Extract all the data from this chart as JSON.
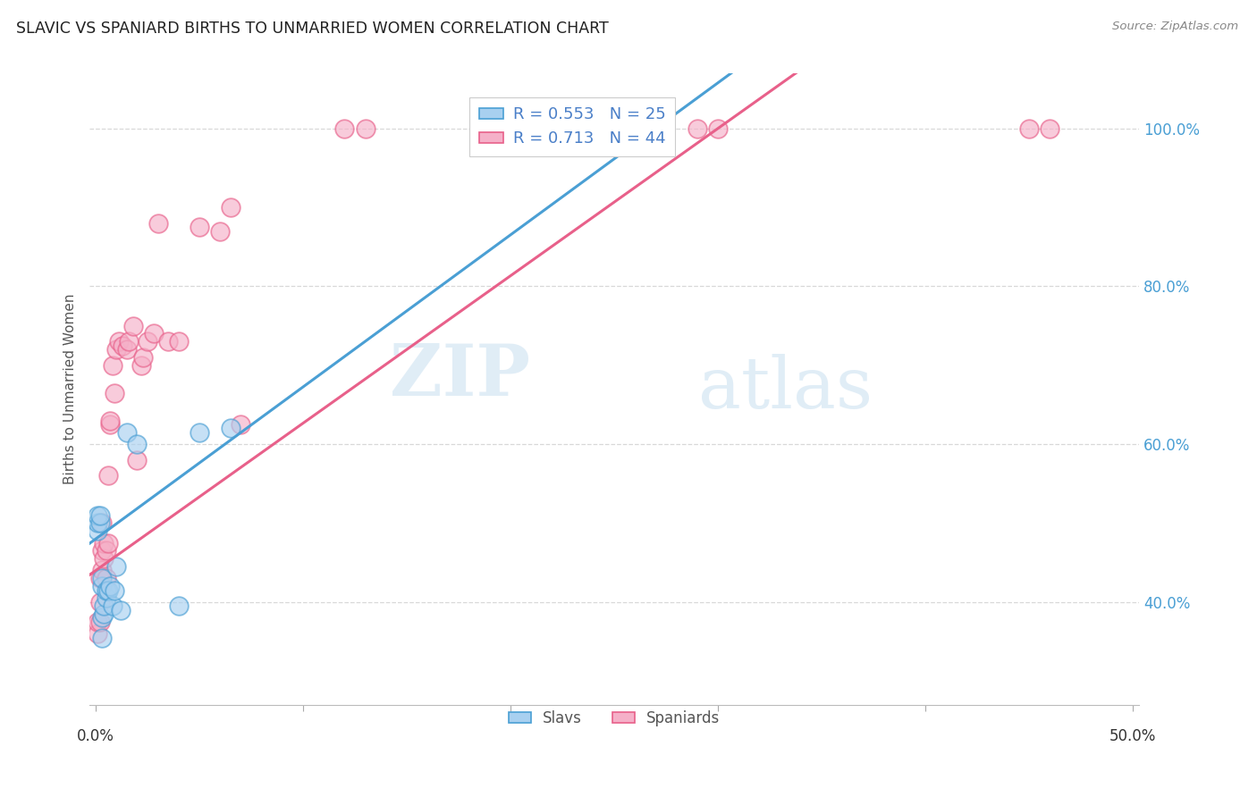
{
  "title": "SLAVIC VS SPANIARD BIRTHS TO UNMARRIED WOMEN CORRELATION CHART",
  "source": "Source: ZipAtlas.com",
  "ylabel": "Births to Unmarried Women",
  "xmin": -0.003,
  "xmax": 0.503,
  "ymin": 0.27,
  "ymax": 1.07,
  "slavs_R": 0.553,
  "slavs_N": 25,
  "spaniards_R": 0.713,
  "spaniards_N": 44,
  "slavs_color": "#a8d0f0",
  "spaniards_color": "#f5b0c8",
  "slavs_line_color": "#4a9fd4",
  "spaniards_line_color": "#e8608a",
  "legend_text_color": "#4a7fc8",
  "slavs_x": [
    0.001,
    0.001,
    0.001,
    0.002,
    0.002,
    0.003,
    0.003,
    0.003,
    0.003,
    0.004,
    0.004,
    0.005,
    0.005,
    0.006,
    0.007,
    0.008,
    0.009,
    0.01,
    0.012,
    0.015,
    0.02,
    0.04,
    0.05,
    0.065,
    0.27
  ],
  "slavs_y": [
    0.49,
    0.5,
    0.51,
    0.5,
    0.51,
    0.355,
    0.38,
    0.42,
    0.43,
    0.385,
    0.395,
    0.405,
    0.415,
    0.415,
    0.42,
    0.395,
    0.415,
    0.445,
    0.39,
    0.615,
    0.6,
    0.395,
    0.615,
    0.62,
    1.0
  ],
  "spaniards_x": [
    0.001,
    0.001,
    0.002,
    0.002,
    0.002,
    0.003,
    0.003,
    0.003,
    0.004,
    0.004,
    0.005,
    0.005,
    0.006,
    0.006,
    0.007,
    0.007,
    0.008,
    0.009,
    0.01,
    0.011,
    0.013,
    0.015,
    0.016,
    0.018,
    0.02,
    0.022,
    0.023,
    0.025,
    0.028,
    0.03,
    0.035,
    0.04,
    0.05,
    0.06,
    0.065,
    0.07,
    0.12,
    0.13,
    0.22,
    0.27,
    0.29,
    0.3,
    0.45,
    0.46
  ],
  "spaniards_y": [
    0.36,
    0.375,
    0.375,
    0.4,
    0.43,
    0.44,
    0.465,
    0.5,
    0.455,
    0.475,
    0.43,
    0.465,
    0.475,
    0.56,
    0.625,
    0.63,
    0.7,
    0.665,
    0.72,
    0.73,
    0.725,
    0.72,
    0.73,
    0.75,
    0.58,
    0.7,
    0.71,
    0.73,
    0.74,
    0.88,
    0.73,
    0.73,
    0.875,
    0.87,
    0.9,
    0.625,
    1.0,
    1.0,
    1.0,
    1.0,
    1.0,
    1.0,
    1.0,
    1.0
  ],
  "slavs_line_x0": 0.0,
  "slavs_line_y0": 0.48,
  "slavs_line_x1": 0.27,
  "slavs_line_y1": 1.0,
  "spaniards_line_x0": 0.0,
  "spaniards_line_y0": 0.44,
  "spaniards_line_x1": 0.3,
  "spaniards_line_y1": 1.0,
  "watermark_text": "ZIPatlas",
  "background_color": "#ffffff",
  "grid_color": "#d8d8d8"
}
